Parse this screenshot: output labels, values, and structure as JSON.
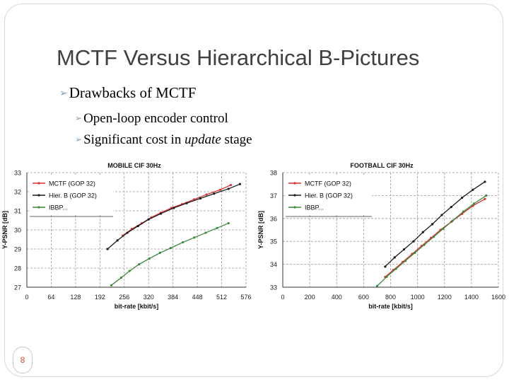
{
  "slide": {
    "title": "MCTF Versus Hierarchical B-Pictures",
    "bullet1": "Drawbacks of MCTF",
    "bullet2": "Open-loop encoder control",
    "bullet3_pre": "Significant cost in ",
    "bullet3_em": "update",
    "bullet3_post": " stage",
    "slide_number": "8"
  },
  "colors": {
    "mctf": "#e03030",
    "hierb": "#1a1a1a",
    "ibbp": "#3a8a3a",
    "grid": "#9a9a9a"
  },
  "chart_data": [
    {
      "type": "line",
      "title": "MOBILE CIF 30Hz",
      "xlabel": "bit-rate [kbit/s]",
      "ylabel": "Y-PSNR [dB]",
      "xlim": [
        0,
        576
      ],
      "ylim": [
        27,
        33
      ],
      "xticks": [
        "0",
        "64",
        "128",
        "192",
        "256",
        "320",
        "384",
        "448",
        "512",
        "576"
      ],
      "yticks": [
        "27",
        "28",
        "29",
        "30",
        "31",
        "32",
        "33"
      ],
      "grid": true,
      "legend": "top-left",
      "series": [
        {
          "name": "MCTF (GOP 32)",
          "color": "mctf",
          "x": [
            252,
            276,
            302,
            327,
            352,
            380,
            408,
            440,
            472,
            508,
            536
          ],
          "y": [
            29.7,
            30.05,
            30.35,
            30.65,
            30.9,
            31.15,
            31.35,
            31.6,
            31.85,
            32.1,
            32.35
          ]
        },
        {
          "name": "Hier. B (GOP 32)",
          "color": "hierb",
          "x": [
            212,
            238,
            264,
            292,
            320,
            352,
            386,
            420,
            456,
            492,
            530,
            560
          ],
          "y": [
            29.0,
            29.45,
            29.85,
            30.2,
            30.55,
            30.85,
            31.15,
            31.4,
            31.65,
            31.9,
            32.15,
            32.4
          ]
        },
        {
          "name": "IBBP...",
          "color": "ibbp",
          "x": [
            222,
            248,
            270,
            295,
            322,
            350,
            378,
            410,
            440,
            470,
            500,
            530
          ],
          "y": [
            27.1,
            27.5,
            27.85,
            28.2,
            28.5,
            28.8,
            29.05,
            29.35,
            29.6,
            29.85,
            30.1,
            30.35
          ]
        }
      ]
    },
    {
      "type": "line",
      "title": "FOOTBALL CIF 30Hz",
      "xlabel": "bit-rate [kbit/s]",
      "ylabel": "Y-PSNR [dB]",
      "xlim": [
        0,
        1600
      ],
      "ylim": [
        33,
        38
      ],
      "xticks": [
        "0",
        "200",
        "400",
        "600",
        "800",
        "1000",
        "1200",
        "1400",
        "1600"
      ],
      "yticks": [
        "33",
        "34",
        "35",
        "36",
        "37",
        "38"
      ],
      "grid": true,
      "legend": "top-left",
      "series": [
        {
          "name": "MCTF (GOP 32)",
          "color": "mctf",
          "x": [
            760,
            820,
            890,
            960,
            1030,
            1100,
            1170,
            1250,
            1330,
            1410,
            1500
          ],
          "y": [
            33.45,
            33.75,
            34.1,
            34.45,
            34.8,
            35.15,
            35.5,
            35.85,
            36.2,
            36.55,
            36.85
          ]
        },
        {
          "name": "Hier. B (GOP 32)",
          "color": "hierb",
          "x": [
            760,
            830,
            900,
            970,
            1040,
            1110,
            1180,
            1250,
            1330,
            1410,
            1500
          ],
          "y": [
            33.9,
            34.3,
            34.65,
            35.0,
            35.4,
            35.75,
            36.15,
            36.5,
            36.9,
            37.25,
            37.6
          ]
        },
        {
          "name": "IBBP...",
          "color": "ibbp",
          "x": [
            700,
            770,
            840,
            910,
            980,
            1050,
            1120,
            1190,
            1260,
            1340,
            1420,
            1510
          ],
          "y": [
            33.05,
            33.45,
            33.8,
            34.15,
            34.5,
            34.85,
            35.2,
            35.55,
            35.9,
            36.3,
            36.65,
            37.0
          ]
        }
      ]
    }
  ]
}
